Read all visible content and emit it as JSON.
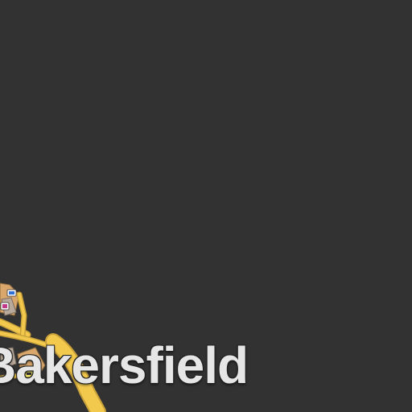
{
  "map": {
    "background_color": "#323232",
    "road_color": "#f2c94c",
    "road_casing_color": "#c9a13a",
    "building_color": "#d9a66b",
    "building_alt_color": "#b8a99a"
  },
  "place_label": {
    "text": "Bakersfield",
    "color": "#e6e6e6"
  },
  "poi_icons": [
    {
      "name": "parking-icon"
    },
    {
      "name": "hotel-icon"
    },
    {
      "name": "shop-icon"
    },
    {
      "name": "cafe-icon"
    }
  ]
}
